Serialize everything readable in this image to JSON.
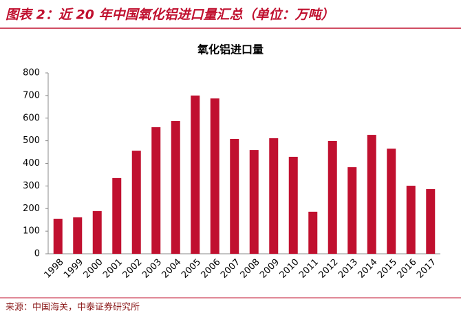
{
  "header": {
    "title": "图表 2：近 20 年中国氧化铝进口量汇总（单位：万吨）"
  },
  "chart_data": {
    "type": "bar",
    "title": "氧化铝进口量",
    "categories": [
      "1998",
      "1999",
      "2000",
      "2001",
      "2002",
      "2003",
      "2004",
      "2005",
      "2006",
      "2007",
      "2008",
      "2009",
      "2010",
      "2011",
      "2012",
      "2013",
      "2014",
      "2015",
      "2016",
      "2017"
    ],
    "values": [
      155,
      161,
      189,
      335,
      456,
      560,
      587,
      700,
      687,
      508,
      459,
      511,
      429,
      186,
      499,
      383,
      526,
      465,
      301,
      286
    ],
    "color": "#c0102f",
    "ylim": [
      0,
      800
    ],
    "yticks": [
      0,
      100,
      200,
      300,
      400,
      500,
      600,
      700,
      800
    ],
    "grid": false
  },
  "footer": {
    "source": "来源：中国海关，中泰证券研究所"
  }
}
